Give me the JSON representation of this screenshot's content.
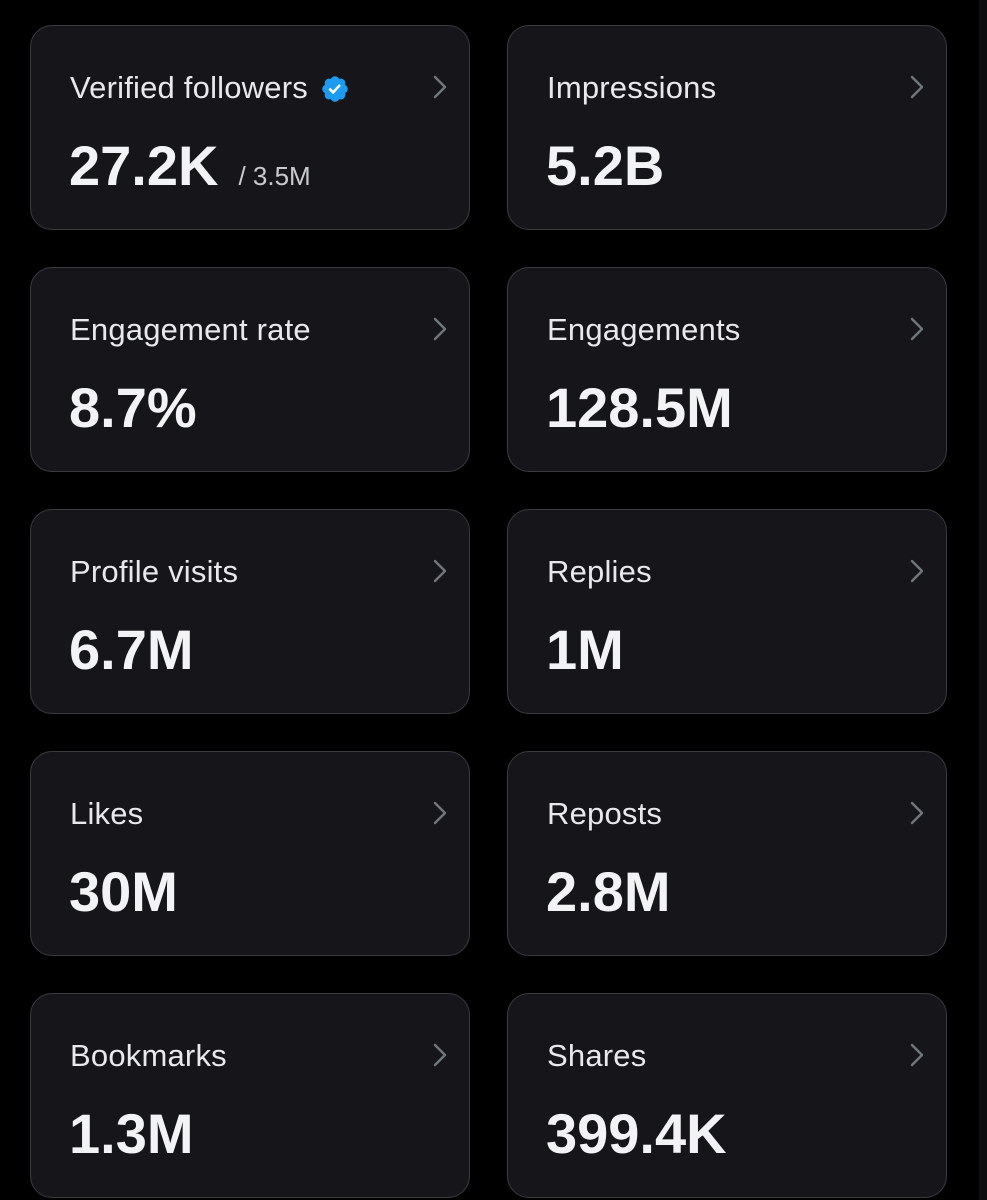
{
  "colors": {
    "background": "#000000",
    "card_background": "#16161a",
    "card_border": "#3a3a3f",
    "label_text": "#e7e9ea",
    "value_text": "#f2f3f4",
    "verified_badge": "#1d9bf0",
    "chevron": "#71767b"
  },
  "cards": [
    {
      "label": "Verified followers",
      "value": "27.2K",
      "subvalue": "/ 3.5M",
      "icon": "verified-badge-icon"
    },
    {
      "label": "Impressions",
      "value": "5.2B"
    },
    {
      "label": "Engagement rate",
      "value": "8.7%"
    },
    {
      "label": "Engagements",
      "value": "128.5M"
    },
    {
      "label": "Profile visits",
      "value": "6.7M"
    },
    {
      "label": "Replies",
      "value": "1M"
    },
    {
      "label": "Likes",
      "value": "30M"
    },
    {
      "label": "Reposts",
      "value": "2.8M"
    },
    {
      "label": "Bookmarks",
      "value": "1.3M"
    },
    {
      "label": "Shares",
      "value": "399.4K"
    }
  ]
}
